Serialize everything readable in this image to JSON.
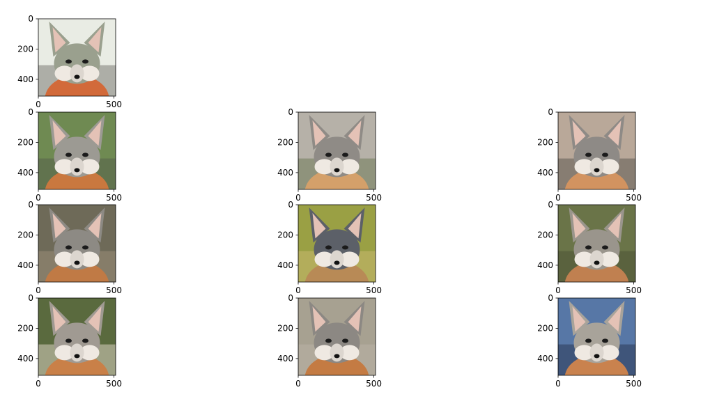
{
  "chart_data": {
    "type": "image-grid",
    "title": "",
    "axes": {
      "xlim": [
        0,
        511
      ],
      "ylim": [
        511,
        0
      ],
      "xticks": [
        0,
        500
      ],
      "yticks": [
        0,
        200,
        400
      ],
      "xtick_labels": [
        "0",
        "500"
      ],
      "ytick_labels": [
        "0",
        "200",
        "400"
      ]
    },
    "grid": {
      "rows": 4,
      "cols": 3
    },
    "panels": [
      {
        "row": 0,
        "col": 0,
        "subject": "gray fox face",
        "palette": [
          "#e9ece4",
          "#9aa08e",
          "#d26a3a",
          "#7b7b74"
        ]
      },
      {
        "row": 1,
        "col": 0,
        "subject": "gray fox face",
        "palette": [
          "#6f8a52",
          "#9c9a93",
          "#c9783f",
          "#55604a"
        ]
      },
      {
        "row": 1,
        "col": 1,
        "subject": "gray fox face",
        "palette": [
          "#b6b1a8",
          "#8f8b86",
          "#d4a06a",
          "#6f7a58"
        ]
      },
      {
        "row": 1,
        "col": 2,
        "subject": "gray fox face",
        "palette": [
          "#b9a899",
          "#8e8a86",
          "#d29360",
          "#5e5a52"
        ]
      },
      {
        "row": 2,
        "col": 0,
        "subject": "gray fox face",
        "palette": [
          "#6e6a58",
          "#8d8a84",
          "#c07a45",
          "#9a8d78"
        ]
      },
      {
        "row": 2,
        "col": 1,
        "subject": "gray fox face",
        "palette": [
          "#9aa044",
          "#5c6068",
          "#b88a56",
          "#c8b870"
        ]
      },
      {
        "row": 2,
        "col": 2,
        "subject": "gray fox face",
        "palette": [
          "#6a7448",
          "#9a958c",
          "#c08050",
          "#4d5436"
        ]
      },
      {
        "row": 3,
        "col": 0,
        "subject": "gray fox face",
        "palette": [
          "#5a6a3e",
          "#a09a92",
          "#c98048",
          "#d9cfc0"
        ]
      },
      {
        "row": 3,
        "col": 1,
        "subject": "gray fox face",
        "palette": [
          "#a7a191",
          "#8c8883",
          "#c47b43",
          "#b9b3a6"
        ]
      },
      {
        "row": 3,
        "col": 2,
        "subject": "gray fox face",
        "palette": [
          "#5777a6",
          "#a8a39a",
          "#c9824e",
          "#2b3a55"
        ]
      }
    ]
  }
}
